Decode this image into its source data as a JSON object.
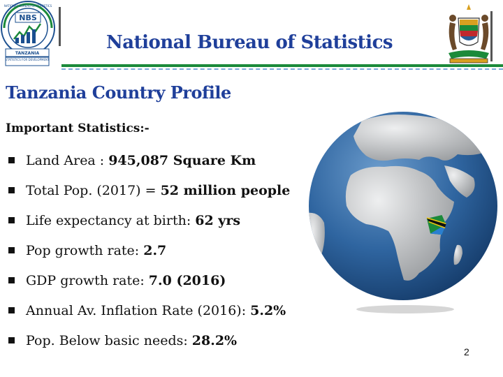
{
  "header": {
    "title": "National Bureau of Statistics",
    "logo_left": {
      "icon": "nbs-logo-icon",
      "text_top": "NATIONAL BUREAU OF STATISTICS",
      "abbr": "NBS",
      "text_bottom": "TANZANIA",
      "motto": "STATISTICS FOR DEVELOPMENT"
    },
    "logo_right": {
      "icon": "tanzania-coat-of-arms-icon"
    }
  },
  "slide": {
    "title": "Tanzania Country Profile",
    "section_label": "Important Statistics:-",
    "stats": [
      {
        "label": "Land Area :",
        "value": "945,087 Square Km"
      },
      {
        "label": "Total Pop. (2017) =",
        "value": "52 million people"
      },
      {
        "label": "Life expectancy at birth:",
        "value": "62 yrs"
      },
      {
        "label": "Pop growth rate:",
        "value": "2.7"
      },
      {
        "label": "GDP growth rate:",
        "value": "7.0 (2016)"
      },
      {
        "label": "Annual Av. Inflation Rate (2016):",
        "value": "5.2%"
      },
      {
        "label": "Pop. Below basic needs:",
        "value": "28.2%"
      }
    ],
    "globe_icon": "globe-africa-icon",
    "page_number": "2"
  },
  "colors": {
    "title_blue": "#1f3f9a",
    "rule_green": "#1b8a3a",
    "ocean": "#2a5d96",
    "land": "#c9ccce"
  }
}
